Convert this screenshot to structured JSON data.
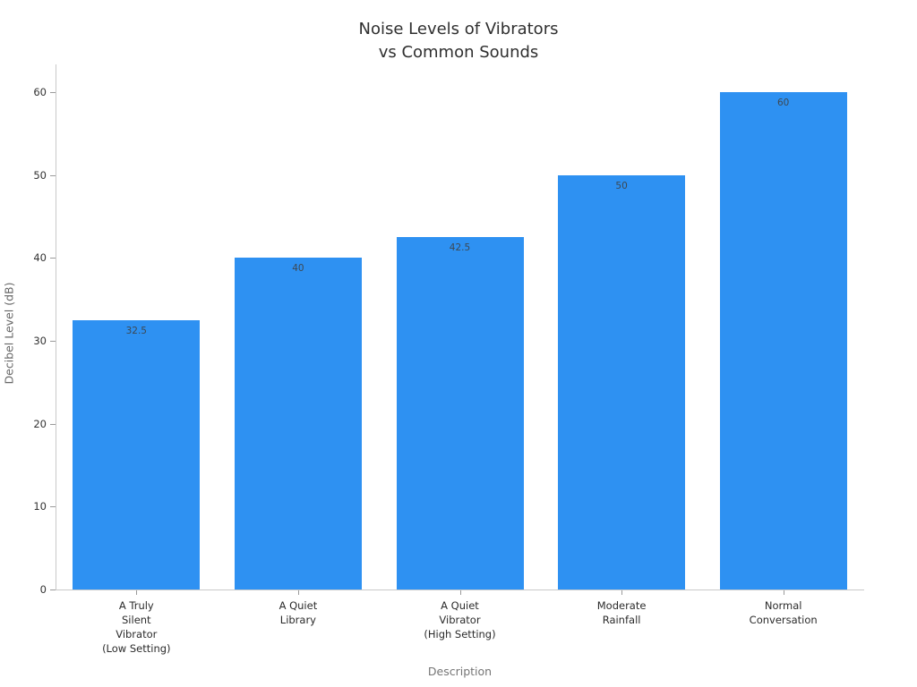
{
  "chart_data": {
    "type": "bar",
    "title": "Noise Levels of Vibrators\nvs Common Sounds",
    "xlabel": "Description",
    "ylabel": "Decibel Level (dB)",
    "categories": [
      "A Truly\nSilent\nVibrator\n(Low Setting)",
      "A Quiet\nLibrary",
      "A Quiet\nVibrator\n(High Setting)",
      "Moderate\nRainfall",
      "Normal\nConversation"
    ],
    "values": [
      32.5,
      40,
      42.5,
      50,
      60
    ],
    "value_labels": [
      "32.5",
      "40",
      "42.5",
      "50",
      "60"
    ],
    "yticks": [
      0,
      10,
      20,
      30,
      40,
      50,
      60
    ],
    "ylim": [
      0,
      63
    ],
    "grid": false,
    "legend": null,
    "bar_color": "#2E91F2",
    "value_label_color": "#3d4852",
    "axis_color": "#c9c9c9"
  }
}
